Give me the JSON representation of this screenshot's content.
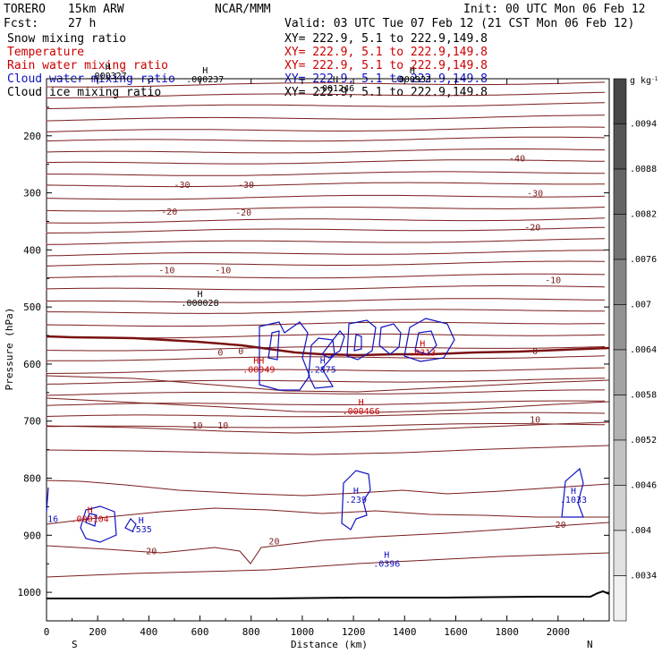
{
  "header": {
    "model": "TORERO",
    "resolution": "15km ARW",
    "center": "NCAR/MMM",
    "init": "Init: 00 UTC Mon 06 Feb 12",
    "fcst_label": "Fcst:",
    "fcst_value": "27 h",
    "valid": "Valid: 03 UTC Tue 07 Feb 12 (21 CST Mon 06 Feb 12)"
  },
  "fields": [
    {
      "name": "Snow mixing ratio",
      "color": "#000000",
      "xy": "XY= 222.9,   5.1 to 222.9,149.8"
    },
    {
      "name": "Temperature",
      "color": "#cc0000",
      "xy": "XY= 222.9,   5.1 to 222.9,149.8"
    },
    {
      "name": "Rain water mixing ratio",
      "color": "#cc0000",
      "xy": "XY= 222.9,   5.1 to 222.9,149.8"
    },
    {
      "name": "Cloud water mixing ratio",
      "color": "#1010c0",
      "xy": "XY= 222.9,   5.1 to 222.9,149.8"
    },
    {
      "name": "Cloud ice mixing ratio",
      "color": "#000000",
      "xy": "XY= 222.9,   5.1 to 222.9,149.8"
    }
  ],
  "colors": {
    "temperature": "#7a1c1c",
    "freezing": "#7a1010",
    "rain": "#cc0000",
    "cloud_water": "#1010c0",
    "terrain": "#000000"
  },
  "chart_data": {
    "type": "line",
    "xlabel": "Distance (km)",
    "ylabel": "Pressure (hPa)",
    "xlim": [
      0,
      2200
    ],
    "ylim": [
      1050,
      100
    ],
    "x_ticks": [
      0,
      200,
      400,
      600,
      800,
      1000,
      1200,
      1400,
      1600,
      1800,
      2000
    ],
    "y_ticks": [
      200,
      300,
      400,
      500,
      600,
      700,
      800,
      900,
      1000
    ],
    "left_end": "S",
    "right_end": "N",
    "colorbar": {
      "unit": "g kg",
      "unit_sup": "-1",
      "levels": [
        ".0034",
        ".004",
        ".0046",
        ".0052",
        ".0058",
        ".0064",
        ".007",
        ".0076",
        ".0082",
        ".0088",
        ".0094"
      ]
    },
    "temperature_labels": [
      {
        "text": "-40",
        "x": 1840,
        "p": 245
      },
      {
        "text": "-30",
        "x": 530,
        "p": 291
      },
      {
        "text": "-30",
        "x": 780,
        "p": 291
      },
      {
        "text": "-30",
        "x": 1910,
        "p": 306
      },
      {
        "text": "-20",
        "x": 480,
        "p": 338
      },
      {
        "text": "-20",
        "x": 770,
        "p": 340
      },
      {
        "text": "-20",
        "x": 1900,
        "p": 366
      },
      {
        "text": "-10",
        "x": 470,
        "p": 441
      },
      {
        "text": "-10",
        "x": 690,
        "p": 441
      },
      {
        "text": "-10",
        "x": 1980,
        "p": 458
      },
      {
        "text": "0",
        "x": 680,
        "p": 585
      },
      {
        "text": "0",
        "x": 760,
        "p": 583
      },
      {
        "text": "0",
        "x": 1910,
        "p": 583
      },
      {
        "text": "10",
        "x": 590,
        "p": 713
      },
      {
        "text": "10",
        "x": 690,
        "p": 713
      },
      {
        "text": "10",
        "x": 1910,
        "p": 703
      },
      {
        "text": "20",
        "x": 2010,
        "p": 887
      },
      {
        "text": "20",
        "x": 890,
        "p": 916
      },
      {
        "text": "20",
        "x": 410,
        "p": 933
      }
    ],
    "extrema_labels": [
      {
        "mark": "H",
        "value": ".000327",
        "x": 240,
        "p": 100,
        "series": "snow"
      },
      {
        "mark": "H",
        "value": ".000237",
        "x": 620,
        "p": 106,
        "series": "snow"
      },
      {
        "mark": "H",
        "value": ".001246",
        "x": 1130,
        "p": 122,
        "series": "snow"
      },
      {
        "mark": "H",
        "value": ".000933",
        "x": 1430,
        "p": 106,
        "series": "snow"
      },
      {
        "mark": "H",
        "value": ".000028",
        "x": 600,
        "p": 498,
        "series": "snow"
      },
      {
        "mark": "HH",
        "value": ".00949",
        "x": 830,
        "p": 615,
        "series": "rain"
      },
      {
        "mark": "H",
        "value": ".2875",
        "x": 1080,
        "p": 615,
        "series": "cloud"
      },
      {
        "mark": "H",
        "value": ".0313",
        "x": 1470,
        "p": 585,
        "series": "rain"
      },
      {
        "mark": "H",
        "value": ".000466",
        "x": 1230,
        "p": 688,
        "series": "rain"
      },
      {
        "mark": "H",
        "value": ".239",
        "x": 1210,
        "p": 843,
        "series": "cloud"
      },
      {
        "mark": "H",
        "value": ".1033",
        "x": 2060,
        "p": 843,
        "series": "cloud"
      },
      {
        "mark": "H",
        "value": ".000104",
        "x": 170,
        "p": 877,
        "series": "rain"
      },
      {
        "mark": "H",
        "value": ".535",
        "x": 370,
        "p": 895,
        "series": "cloud"
      },
      {
        "mark": "H",
        "value": ".0396",
        "x": 1330,
        "p": 955,
        "series": "cloud"
      },
      {
        "mark": "",
        "value": "16",
        "x": 25,
        "p": 877,
        "series": "cloud"
      }
    ]
  }
}
